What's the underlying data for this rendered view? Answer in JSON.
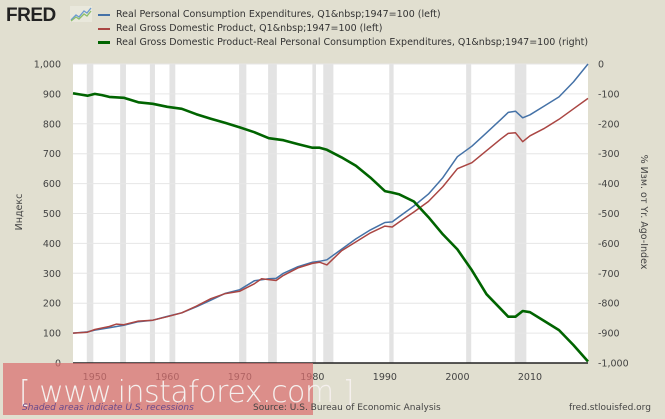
{
  "header": {
    "logo_text": "FRED",
    "logo_icon": "chart-line-icon"
  },
  "chart_data": {
    "type": "line",
    "title": "",
    "legend_position": "top-left",
    "legend": [
      {
        "label": "Real Personal Consumption Expenditures, Q1&nbsp;1947=100 (left)",
        "color": "#4572a7",
        "axis": "left"
      },
      {
        "label": "Real Gross Domestic Product, Q1&nbsp;1947=100 (left)",
        "color": "#aa4643",
        "axis": "left"
      },
      {
        "label": "Real Gross Domestic Product-Real Personal Consumption Expenditures, Q1&nbsp;1947=100 (right)",
        "color": "#006400",
        "axis": "right"
      }
    ],
    "xlabel": "",
    "ylabel_left": "Индекс",
    "ylabel_right": "% Изм. от Yr. Ago-Index",
    "xlim": [
      1947,
      2018
    ],
    "ylim_left": [
      0,
      1000
    ],
    "ylim_right": [
      -1000,
      0
    ],
    "x_ticks": [
      "1950",
      "1960",
      "1970",
      "1980",
      "1990",
      "2000",
      "2010"
    ],
    "x_tick_values": [
      1950,
      1960,
      1970,
      1980,
      1990,
      2000,
      2010
    ],
    "y_ticks_left": [
      "0",
      "100",
      "200",
      "300",
      "400",
      "500",
      "600",
      "700",
      "800",
      "900",
      "1,000"
    ],
    "y_tick_values_left": [
      0,
      100,
      200,
      300,
      400,
      500,
      600,
      700,
      800,
      900,
      1000
    ],
    "y_ticks_right": [
      "-1,000",
      "-900",
      "-800",
      "-700",
      "-600",
      "-500",
      "-400",
      "-300",
      "-200",
      "-100",
      "0"
    ],
    "y_tick_values_right": [
      -1000,
      -900,
      -800,
      -700,
      -600,
      -500,
      -400,
      -300,
      -200,
      -100,
      0
    ],
    "grid": true,
    "recessions": [
      [
        1948.9,
        1949.8
      ],
      [
        1953.5,
        1954.3
      ],
      [
        1957.6,
        1958.3
      ],
      [
        1960.3,
        1961.1
      ],
      [
        1969.9,
        1970.9
      ],
      [
        1973.9,
        1975.1
      ],
      [
        1980.0,
        1980.5
      ],
      [
        1981.5,
        1982.9
      ],
      [
        1990.6,
        1991.2
      ],
      [
        2001.2,
        2001.9
      ],
      [
        2007.9,
        2009.5
      ]
    ],
    "series": [
      {
        "name": "Real Personal Consumption Expenditures",
        "axis": "left",
        "x": [
          1947,
          1949,
          1950,
          1952,
          1954,
          1956,
          1958,
          1960,
          1962,
          1964,
          1966,
          1968,
          1970,
          1972,
          1974,
          1975,
          1976,
          1978,
          1980,
          1981,
          1982,
          1984,
          1986,
          1988,
          1990,
          1991,
          1992,
          1994,
          1996,
          1998,
          2000,
          2002,
          2004,
          2006,
          2007,
          2008,
          2009,
          2010,
          2012,
          2014,
          2016,
          2018
        ],
        "values": [
          100,
          104,
          110,
          118,
          126,
          138,
          143,
          156,
          168,
          188,
          210,
          233,
          245,
          275,
          282,
          283,
          300,
          322,
          337,
          340,
          345,
          380,
          415,
          445,
          470,
          472,
          490,
          525,
          565,
          620,
          690,
          725,
          770,
          815,
          838,
          842,
          820,
          830,
          860,
          890,
          940,
          1000
        ]
      },
      {
        "name": "Real Gross Domestic Product",
        "axis": "left",
        "x": [
          1947,
          1949,
          1950,
          1952,
          1953,
          1954,
          1956,
          1958,
          1960,
          1962,
          1964,
          1966,
          1968,
          1970,
          1972,
          1973,
          1975,
          1976,
          1978,
          1980,
          1981,
          1982,
          1984,
          1986,
          1988,
          1990,
          1991,
          1992,
          1994,
          1996,
          1998,
          2000,
          2002,
          2004,
          2006,
          2007,
          2008,
          2009,
          2010,
          2012,
          2014,
          2016,
          2018
        ],
        "values": [
          100,
          103,
          112,
          122,
          130,
          128,
          140,
          143,
          155,
          168,
          190,
          215,
          232,
          240,
          265,
          282,
          276,
          293,
          318,
          333,
          337,
          328,
          375,
          405,
          435,
          458,
          455,
          472,
          505,
          540,
          590,
          650,
          670,
          710,
          750,
          768,
          770,
          740,
          760,
          785,
          815,
          850,
          885
        ]
      },
      {
        "name": "Real Gross Domestic Product-Real Personal Consumption Expenditures",
        "axis": "right",
        "x": [
          1947,
          1948,
          1949,
          1950,
          1951,
          1952,
          1954,
          1956,
          1958,
          1960,
          1962,
          1964,
          1966,
          1968,
          1970,
          1972,
          1974,
          1976,
          1978,
          1980,
          1981,
          1982,
          1984,
          1986,
          1988,
          1990,
          1991,
          1992,
          1994,
          1996,
          1998,
          2000,
          2002,
          2004,
          2006,
          2007,
          2008,
          2009,
          2010,
          2012,
          2014,
          2016,
          2018
        ],
        "values": [
          -98,
          -102,
          -106,
          -100,
          -104,
          -110,
          -113,
          -128,
          -133,
          -143,
          -150,
          -168,
          -183,
          -197,
          -212,
          -228,
          -248,
          -255,
          -268,
          -280,
          -280,
          -287,
          -312,
          -340,
          -380,
          -425,
          -430,
          -436,
          -460,
          -512,
          -570,
          -620,
          -690,
          -770,
          -820,
          -845,
          -845,
          -826,
          -830,
          -860,
          -890,
          -940,
          -995
        ]
      }
    ]
  },
  "watermark": {
    "text": "[  www.instaforex.com ]"
  },
  "footer": {
    "recession_note": "Shaded areas indicate U.S. recessions",
    "source": "Source: U.S. Bureau of Economic Analysis",
    "url": "fred.stlouisfed.org"
  }
}
